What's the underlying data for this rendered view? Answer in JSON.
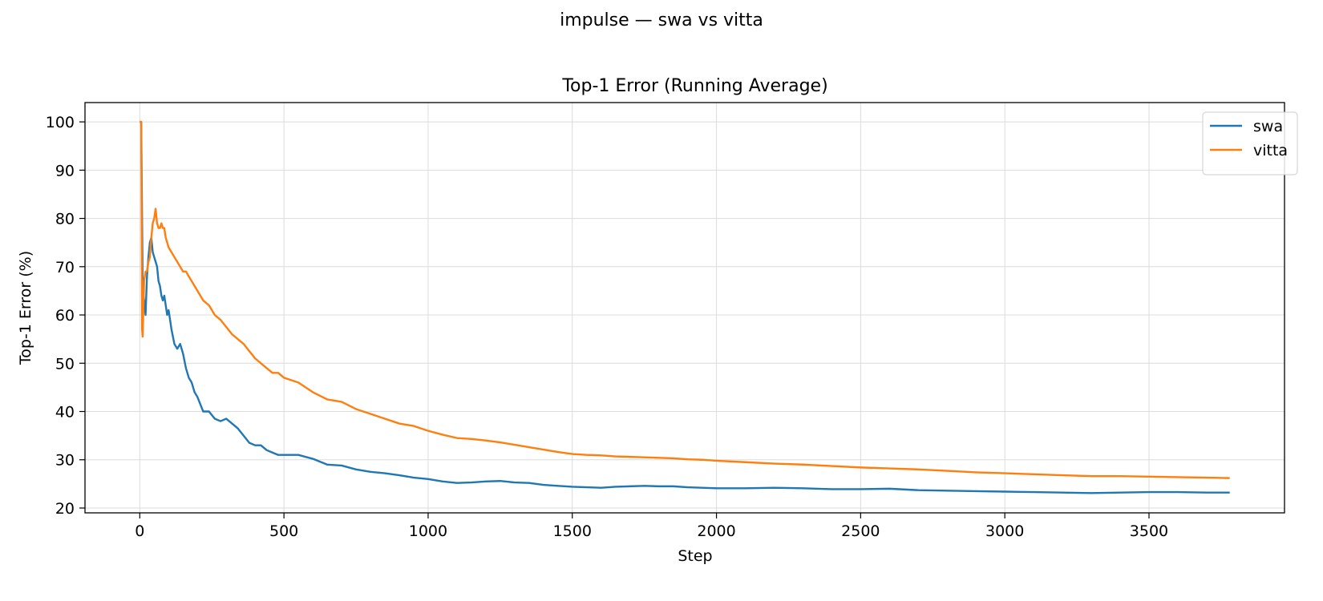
{
  "figure": {
    "suptitle": "impulse — swa vs vitta"
  },
  "chart_data": {
    "type": "line",
    "title": "Top-1 Error (Running Average)",
    "xlabel": "Step",
    "ylabel": "Top-1 Error (%)",
    "xlim": [
      -190,
      3970
    ],
    "ylim": [
      19,
      104
    ],
    "xticks": [
      0,
      500,
      1000,
      1500,
      2000,
      2500,
      3000,
      3500
    ],
    "yticks": [
      20,
      30,
      40,
      50,
      60,
      70,
      80,
      90,
      100
    ],
    "grid": true,
    "legend_position": "top-right",
    "series": [
      {
        "name": "swa",
        "color": "#1f77b4",
        "points": [
          [
            0,
            100
          ],
          [
            5,
            100
          ],
          [
            10,
            66
          ],
          [
            15,
            63
          ],
          [
            20,
            60
          ],
          [
            25,
            68
          ],
          [
            30,
            72
          ],
          [
            35,
            75
          ],
          [
            40,
            76
          ],
          [
            45,
            73
          ],
          [
            50,
            72
          ],
          [
            55,
            71
          ],
          [
            60,
            70
          ],
          [
            65,
            67
          ],
          [
            70,
            66
          ],
          [
            75,
            64
          ],
          [
            80,
            63
          ],
          [
            85,
            64
          ],
          [
            90,
            62
          ],
          [
            95,
            60
          ],
          [
            100,
            61
          ],
          [
            110,
            57
          ],
          [
            120,
            54
          ],
          [
            130,
            53
          ],
          [
            140,
            54
          ],
          [
            150,
            52
          ],
          [
            160,
            49
          ],
          [
            170,
            47
          ],
          [
            180,
            46
          ],
          [
            190,
            44
          ],
          [
            200,
            43
          ],
          [
            220,
            40
          ],
          [
            240,
            40
          ],
          [
            260,
            38.5
          ],
          [
            280,
            38
          ],
          [
            300,
            38.5
          ],
          [
            320,
            37.5
          ],
          [
            340,
            36.5
          ],
          [
            360,
            35
          ],
          [
            380,
            33.5
          ],
          [
            400,
            33
          ],
          [
            420,
            33
          ],
          [
            440,
            32
          ],
          [
            460,
            31.5
          ],
          [
            480,
            31
          ],
          [
            500,
            31
          ],
          [
            550,
            31
          ],
          [
            600,
            30.2
          ],
          [
            650,
            29
          ],
          [
            700,
            28.8
          ],
          [
            750,
            28
          ],
          [
            800,
            27.5
          ],
          [
            850,
            27.2
          ],
          [
            900,
            26.8
          ],
          [
            950,
            26.3
          ],
          [
            1000,
            26
          ],
          [
            1050,
            25.5
          ],
          [
            1100,
            25.2
          ],
          [
            1150,
            25.3
          ],
          [
            1200,
            25.5
          ],
          [
            1250,
            25.6
          ],
          [
            1300,
            25.3
          ],
          [
            1350,
            25.2
          ],
          [
            1400,
            24.8
          ],
          [
            1450,
            24.6
          ],
          [
            1500,
            24.4
          ],
          [
            1550,
            24.3
          ],
          [
            1600,
            24.2
          ],
          [
            1650,
            24.4
          ],
          [
            1700,
            24.5
          ],
          [
            1750,
            24.6
          ],
          [
            1800,
            24.5
          ],
          [
            1850,
            24.5
          ],
          [
            1900,
            24.3
          ],
          [
            1950,
            24.2
          ],
          [
            2000,
            24.1
          ],
          [
            2100,
            24.1
          ],
          [
            2200,
            24.2
          ],
          [
            2300,
            24.1
          ],
          [
            2400,
            23.9
          ],
          [
            2500,
            23.9
          ],
          [
            2600,
            24
          ],
          [
            2700,
            23.7
          ],
          [
            2800,
            23.6
          ],
          [
            2900,
            23.5
          ],
          [
            3000,
            23.4
          ],
          [
            3100,
            23.3
          ],
          [
            3200,
            23.2
          ],
          [
            3300,
            23.1
          ],
          [
            3400,
            23.2
          ],
          [
            3500,
            23.3
          ],
          [
            3600,
            23.3
          ],
          [
            3700,
            23.2
          ],
          [
            3780,
            23.2
          ]
        ]
      },
      {
        "name": "vitta",
        "color": "#ff7f0e",
        "points": [
          [
            0,
            100
          ],
          [
            5,
            100
          ],
          [
            8,
            57
          ],
          [
            10,
            55.5
          ],
          [
            15,
            67
          ],
          [
            20,
            69
          ],
          [
            25,
            69
          ],
          [
            30,
            71
          ],
          [
            35,
            72
          ],
          [
            40,
            76
          ],
          [
            45,
            79
          ],
          [
            50,
            80
          ],
          [
            55,
            82
          ],
          [
            60,
            79
          ],
          [
            65,
            78
          ],
          [
            70,
            78
          ],
          [
            75,
            79
          ],
          [
            80,
            78
          ],
          [
            85,
            78
          ],
          [
            90,
            76
          ],
          [
            95,
            75
          ],
          [
            100,
            74
          ],
          [
            110,
            73
          ],
          [
            120,
            72
          ],
          [
            130,
            71
          ],
          [
            140,
            70
          ],
          [
            150,
            69
          ],
          [
            160,
            69
          ],
          [
            170,
            68
          ],
          [
            180,
            67
          ],
          [
            190,
            66
          ],
          [
            200,
            65
          ],
          [
            220,
            63
          ],
          [
            240,
            62
          ],
          [
            260,
            60
          ],
          [
            280,
            59
          ],
          [
            300,
            57.5
          ],
          [
            320,
            56
          ],
          [
            340,
            55
          ],
          [
            360,
            54
          ],
          [
            380,
            52.5
          ],
          [
            400,
            51
          ],
          [
            420,
            50
          ],
          [
            440,
            49
          ],
          [
            460,
            48
          ],
          [
            480,
            48
          ],
          [
            500,
            47
          ],
          [
            550,
            46
          ],
          [
            600,
            44
          ],
          [
            650,
            42.5
          ],
          [
            700,
            42
          ],
          [
            750,
            40.5
          ],
          [
            800,
            39.5
          ],
          [
            850,
            38.5
          ],
          [
            900,
            37.5
          ],
          [
            950,
            37
          ],
          [
            1000,
            36
          ],
          [
            1050,
            35.2
          ],
          [
            1100,
            34.5
          ],
          [
            1150,
            34.3
          ],
          [
            1200,
            34
          ],
          [
            1250,
            33.6
          ],
          [
            1300,
            33.1
          ],
          [
            1350,
            32.6
          ],
          [
            1400,
            32.1
          ],
          [
            1450,
            31.6
          ],
          [
            1500,
            31.2
          ],
          [
            1550,
            31
          ],
          [
            1600,
            30.9
          ],
          [
            1650,
            30.7
          ],
          [
            1700,
            30.6
          ],
          [
            1750,
            30.5
          ],
          [
            1800,
            30.4
          ],
          [
            1850,
            30.3
          ],
          [
            1900,
            30.1
          ],
          [
            1950,
            30
          ],
          [
            2000,
            29.8
          ],
          [
            2100,
            29.5
          ],
          [
            2200,
            29.2
          ],
          [
            2300,
            29
          ],
          [
            2400,
            28.7
          ],
          [
            2500,
            28.4
          ],
          [
            2600,
            28.2
          ],
          [
            2700,
            28
          ],
          [
            2800,
            27.7
          ],
          [
            2900,
            27.4
          ],
          [
            3000,
            27.2
          ],
          [
            3100,
            27
          ],
          [
            3200,
            26.8
          ],
          [
            3300,
            26.6
          ],
          [
            3400,
            26.6
          ],
          [
            3500,
            26.5
          ],
          [
            3600,
            26.4
          ],
          [
            3700,
            26.3
          ],
          [
            3780,
            26.2
          ]
        ]
      }
    ]
  }
}
